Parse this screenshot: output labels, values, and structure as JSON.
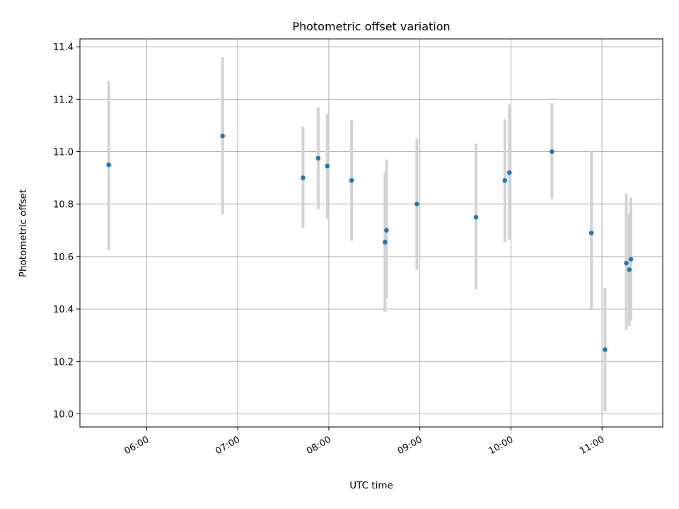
{
  "chart_data": {
    "type": "scatter",
    "title": "Photometric offset variation",
    "xlabel": "UTC time",
    "ylabel": "Photometric offset",
    "x_tick_labels": [
      "06:00",
      "07:00",
      "08:00",
      "09:00",
      "10:00",
      "11:00"
    ],
    "y_tick_labels": [
      "10.0",
      "10.2",
      "10.4",
      "10.6",
      "10.8",
      "11.0",
      "11.2",
      "11.4"
    ],
    "xlim": [
      "05:16",
      "11:40"
    ],
    "ylim": [
      9.95,
      11.43
    ],
    "grid": true,
    "colors": {
      "marker": "#1f77b4",
      "errorbar": "#d3d3d3"
    },
    "series": [
      {
        "points": [
          {
            "x": "05:35",
            "y": 10.95,
            "ylow": 10.625,
            "yhigh": 11.27
          },
          {
            "x": "06:50",
            "y": 11.06,
            "ylow": 10.76,
            "yhigh": 11.36
          },
          {
            "x": "07:43",
            "y": 10.9,
            "ylow": 10.71,
            "yhigh": 11.095
          },
          {
            "x": "07:53",
            "y": 10.975,
            "ylow": 10.78,
            "yhigh": 11.17
          },
          {
            "x": "07:59",
            "y": 10.945,
            "ylow": 10.745,
            "yhigh": 11.145
          },
          {
            "x": "08:15",
            "y": 10.89,
            "ylow": 10.66,
            "yhigh": 11.12
          },
          {
            "x": "08:37",
            "y": 10.655,
            "ylow": 10.39,
            "yhigh": 10.92
          },
          {
            "x": "08:38",
            "y": 10.7,
            "ylow": 10.44,
            "yhigh": 10.97
          },
          {
            "x": "08:58",
            "y": 10.8,
            "ylow": 10.55,
            "yhigh": 11.05
          },
          {
            "x": "09:37",
            "y": 10.75,
            "ylow": 10.475,
            "yhigh": 11.03
          },
          {
            "x": "09:56",
            "y": 10.89,
            "ylow": 10.655,
            "yhigh": 11.125
          },
          {
            "x": "09:59",
            "y": 10.92,
            "ylow": 10.665,
            "yhigh": 11.18
          },
          {
            "x": "10:27",
            "y": 11.0,
            "ylow": 10.82,
            "yhigh": 11.185
          },
          {
            "x": "10:53",
            "y": 10.69,
            "ylow": 10.395,
            "yhigh": 11.0
          },
          {
            "x": "11:02",
            "y": 10.245,
            "ylow": 10.01,
            "yhigh": 10.48
          },
          {
            "x": "11:16",
            "y": 10.575,
            "ylow": 10.32,
            "yhigh": 10.84
          },
          {
            "x": "11:18",
            "y": 10.55,
            "ylow": 10.335,
            "yhigh": 10.765
          },
          {
            "x": "11:19",
            "y": 10.59,
            "ylow": 10.355,
            "yhigh": 10.825
          }
        ]
      }
    ]
  }
}
